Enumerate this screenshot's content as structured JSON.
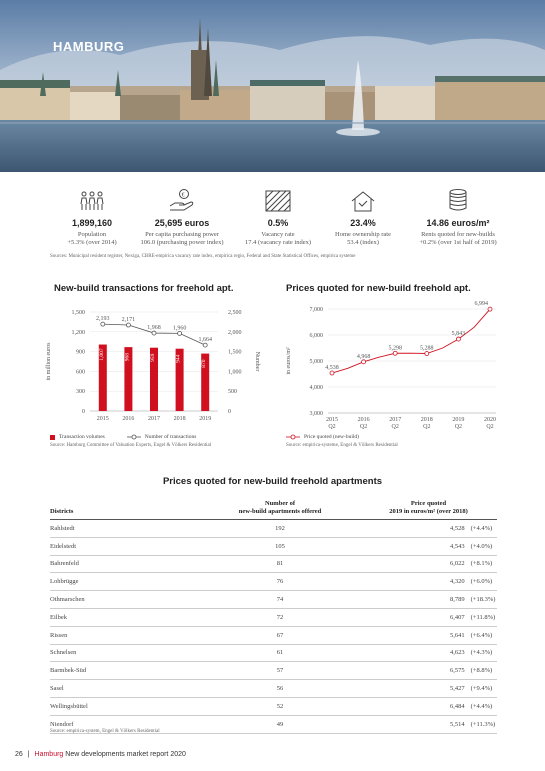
{
  "hero": {
    "title": "HAMBURG"
  },
  "stats": [
    {
      "icon": "population-icon",
      "value": "1,899,160",
      "line1": "Population",
      "line2": "+5.3% (over 2014)"
    },
    {
      "icon": "purchasing-power-icon",
      "value": "25,695 euros",
      "line1": "Per capita purchasing power",
      "line2": "106.0 (purchasing power index)"
    },
    {
      "icon": "vacancy-icon",
      "value": "0.5%",
      "line1": "Vacancy rate",
      "line2": "17.4 (vacancy rate index)"
    },
    {
      "icon": "home-ownership-icon",
      "value": "23.4%",
      "line1": "Home ownership rate",
      "line2": "53.4 (index)"
    },
    {
      "icon": "rent-coins-icon",
      "value": "14.86 euros/m²",
      "line1": "Rents quoted for new-builds",
      "line2": "+0.2% (over 1st half of 2019)"
    }
  ],
  "stats_source": "Sources: Municipal resident register, Nexiga, CBRE-empirica vacancy rate index, empirica regio, Federal and State Statistical Offices, empirica systeme",
  "chart_left": {
    "title": "New-build transactions for freehold apt.",
    "ylabel_left": "in million euros",
    "ylabel_right": "Number",
    "legend_bar": "Transaction volumes",
    "legend_line": "Number of transactions",
    "source": "Source: Hamburg Committee of Valuation Experts, Engel & Völkers Residential"
  },
  "chart_right": {
    "title": "Prices quoted for new-build freehold apt.",
    "ylabel": "in euros/m²",
    "legend": "Price quoted (new-build)",
    "source": "Source: empirica-systeme, Engel & Völkers Residential"
  },
  "chart_data": [
    {
      "type": "bar",
      "title": "New-build transactions for freehold apt.",
      "categories": [
        "2015",
        "2016",
        "2017",
        "2018",
        "2019"
      ],
      "series": [
        {
          "name": "Transaction volumes",
          "values": [
            1007,
            968,
            959,
            944,
            870
          ],
          "axis": "left"
        },
        {
          "name": "Number of transactions",
          "values": [
            2193,
            2171,
            1968,
            1960,
            1664
          ],
          "axis": "right",
          "type": "line"
        }
      ],
      "ylabel": "in million euros",
      "ylim": [
        0,
        1500
      ],
      "yticks": [
        0,
        300,
        600,
        900,
        1200,
        1500
      ],
      "ylabel_right": "Number",
      "ylim_right": [
        0,
        2500
      ],
      "yticks_right": [
        0,
        500,
        1000,
        1500,
        2000,
        2500
      ],
      "colors": {
        "bar": "#d0101e",
        "line": "#555555"
      }
    },
    {
      "type": "line",
      "title": "Prices quoted for new-build freehold apt.",
      "categories": [
        "2015 Q2",
        "2016 Q2",
        "2017 Q2",
        "2018 Q2",
        "2019 Q2",
        "2020 Q2"
      ],
      "x": [
        0,
        0.5,
        1,
        1.5,
        2,
        2.5,
        3,
        3.5,
        4,
        4.5,
        5
      ],
      "series": [
        {
          "name": "Price quoted (new-build)",
          "values": [
            4538,
            4720,
            4968,
            5150,
            5298,
            5300,
            5288,
            5500,
            5843,
            6300,
            6994
          ]
        }
      ],
      "labeled_points": [
        {
          "x": 0,
          "label": "4,538"
        },
        {
          "x": 1,
          "label": "4,968"
        },
        {
          "x": 2,
          "label": "5,298"
        },
        {
          "x": 3,
          "label": "5,288"
        },
        {
          "x": 4,
          "label": "5,843"
        },
        {
          "x": 5,
          "label": "6,994"
        }
      ],
      "ylabel": "in euros/m²",
      "ylim": [
        3000,
        7000
      ],
      "yticks": [
        3000,
        4000,
        5000,
        6000,
        7000
      ],
      "colors": {
        "line": "#d0101e"
      }
    }
  ],
  "table": {
    "title": "Prices quoted for new-build freehold apartments",
    "headers": {
      "district": "Districts",
      "number_1": "Number of",
      "number_2": "new-build apartments offered",
      "price_1": "Price quoted",
      "price_2": "2019 in euros/m² (over 2018)"
    },
    "rows": [
      {
        "district": "Rahlstedt",
        "number": "192",
        "price": "4,528",
        "change": "(+4.4%)"
      },
      {
        "district": "Eidelstedt",
        "number": "105",
        "price": "4,543",
        "change": "(+4.0%)"
      },
      {
        "district": "Bahrenfeld",
        "number": "81",
        "price": "6,022",
        "change": "(+8.1%)"
      },
      {
        "district": "Lohbrügge",
        "number": "76",
        "price": "4,320",
        "change": "(+6.0%)"
      },
      {
        "district": "Othmarschen",
        "number": "74",
        "price": "8,789",
        "change": "(+18.3%)"
      },
      {
        "district": "Eilbek",
        "number": "72",
        "price": "6,407",
        "change": "(+11.8%)"
      },
      {
        "district": "Rissen",
        "number": "67",
        "price": "5,641",
        "change": "(+6.4%)"
      },
      {
        "district": "Schnelsen",
        "number": "61",
        "price": "4,623",
        "change": "(+4.3%)"
      },
      {
        "district": "Barmbek-Süd",
        "number": "57",
        "price": "6,575",
        "change": "(+8.8%)"
      },
      {
        "district": "Sasel",
        "number": "56",
        "price": "5,427",
        "change": "(+9.4%)"
      },
      {
        "district": "Wellingsbüttel",
        "number": "52",
        "price": "6,484",
        "change": "(+4.4%)"
      },
      {
        "district": "Niendorf",
        "number": "49",
        "price": "5,514",
        "change": "(+11.3%)"
      }
    ],
    "source": "Source: empirica-system, Engel & Völkers Residential"
  },
  "footer": {
    "page": "26",
    "city": "Hamburg",
    "report": "New developments market report 2020"
  }
}
